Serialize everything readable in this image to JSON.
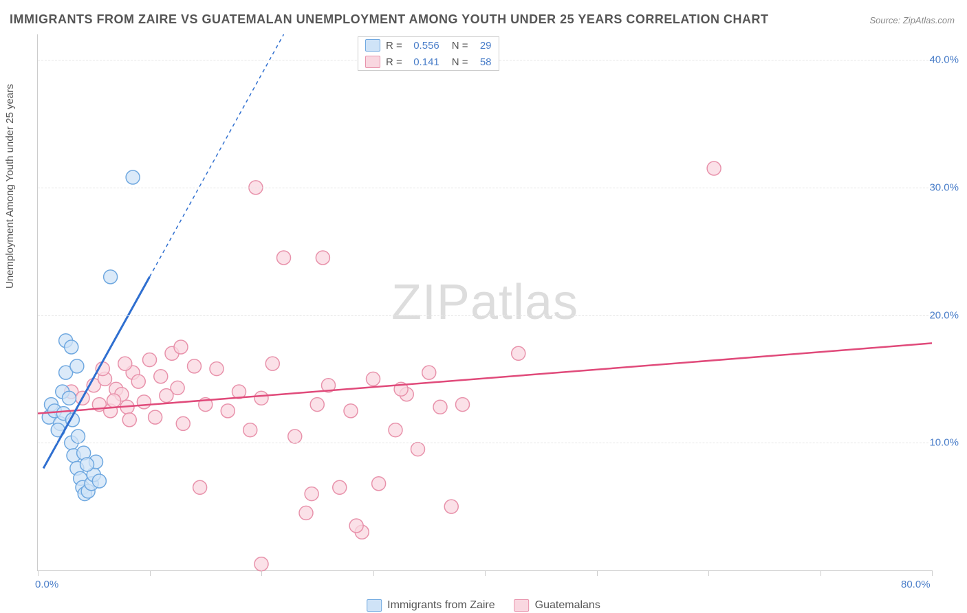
{
  "title": "IMMIGRANTS FROM ZAIRE VS GUATEMALAN UNEMPLOYMENT AMONG YOUTH UNDER 25 YEARS CORRELATION CHART",
  "source_prefix": "Source: ",
  "source_name": "ZipAtlas.com",
  "y_axis_label": "Unemployment Among Youth under 25 years",
  "watermark_zip": "ZIP",
  "watermark_atlas": "atlas",
  "chart": {
    "xlim": [
      0,
      80
    ],
    "ylim": [
      0,
      42
    ],
    "y_ticks": [
      10,
      20,
      30,
      40
    ],
    "y_tick_labels": [
      "10.0%",
      "20.0%",
      "30.0%",
      "40.0%"
    ],
    "x_ticks": [
      0,
      10,
      20,
      30,
      40,
      50,
      60,
      70,
      80
    ],
    "x_tick_labels": {
      "0": "0.0%",
      "80": "80.0%"
    },
    "grid_color": "#e5e5e5",
    "axis_color": "#cccccc",
    "background": "#ffffff"
  },
  "series": {
    "zaire": {
      "label": "Immigrants from Zaire",
      "color_fill": "#cfe3f7",
      "color_stroke": "#6fa8e0",
      "marker_radius": 10,
      "marker_opacity": 0.75,
      "trend_color": "#2f6fd0",
      "trend_width": 3,
      "trend": {
        "x1": 0.5,
        "y1": 8.0,
        "x2": 10.0,
        "y2": 23.0
      },
      "trend_ext": {
        "x1": 10.0,
        "y1": 23.0,
        "x2": 22.0,
        "y2": 42.0
      },
      "r_label": "R =",
      "r_value": "0.556",
      "n_label": "N =",
      "n_value": "29",
      "points": [
        [
          1.0,
          12.0
        ],
        [
          1.2,
          13.0
        ],
        [
          1.5,
          12.5
        ],
        [
          2.0,
          11.5
        ],
        [
          2.2,
          14.0
        ],
        [
          2.5,
          15.5
        ],
        [
          2.8,
          13.5
        ],
        [
          3.0,
          10.0
        ],
        [
          3.2,
          9.0
        ],
        [
          3.5,
          8.0
        ],
        [
          3.8,
          7.2
        ],
        [
          4.0,
          6.5
        ],
        [
          4.2,
          6.0
        ],
        [
          4.5,
          6.2
        ],
        [
          4.8,
          6.8
        ],
        [
          5.0,
          7.5
        ],
        [
          5.2,
          8.5
        ],
        [
          2.5,
          18.0
        ],
        [
          3.0,
          17.5
        ],
        [
          3.5,
          16.0
        ],
        [
          6.5,
          23.0
        ],
        [
          8.5,
          30.8
        ],
        [
          1.8,
          11.0
        ],
        [
          2.3,
          12.3
        ],
        [
          3.1,
          11.8
        ],
        [
          3.6,
          10.5
        ],
        [
          4.1,
          9.2
        ],
        [
          4.4,
          8.3
        ],
        [
          5.5,
          7.0
        ]
      ]
    },
    "guatemalans": {
      "label": "Guatemalans",
      "color_fill": "#f9d7e0",
      "color_stroke": "#e892ab",
      "marker_radius": 10,
      "marker_opacity": 0.75,
      "trend_color": "#e04a7a",
      "trend_width": 2.5,
      "trend": {
        "x1": 0.0,
        "y1": 12.3,
        "x2": 80.0,
        "y2": 17.8
      },
      "r_label": "R =",
      "r_value": "0.141",
      "n_label": "N =",
      "n_value": "58",
      "points": [
        [
          3.0,
          14.0
        ],
        [
          4.0,
          13.5
        ],
        [
          5.0,
          14.5
        ],
        [
          5.5,
          13.0
        ],
        [
          6.0,
          15.0
        ],
        [
          6.5,
          12.5
        ],
        [
          7.0,
          14.2
        ],
        [
          7.5,
          13.8
        ],
        [
          8.0,
          12.8
        ],
        [
          8.5,
          15.5
        ],
        [
          9.0,
          14.8
        ],
        [
          9.5,
          13.2
        ],
        [
          10.0,
          16.5
        ],
        [
          10.5,
          12.0
        ],
        [
          11.0,
          15.2
        ],
        [
          12.0,
          17.0
        ],
        [
          12.5,
          14.3
        ],
        [
          13.0,
          11.5
        ],
        [
          14.0,
          16.0
        ],
        [
          14.5,
          6.5
        ],
        [
          15.0,
          13.0
        ],
        [
          16.0,
          15.8
        ],
        [
          17.0,
          12.5
        ],
        [
          18.0,
          14.0
        ],
        [
          19.0,
          11.0
        ],
        [
          19.5,
          30.0
        ],
        [
          20.0,
          13.5
        ],
        [
          21.0,
          16.2
        ],
        [
          22.0,
          24.5
        ],
        [
          23.0,
          10.5
        ],
        [
          24.0,
          4.5
        ],
        [
          24.5,
          6.0
        ],
        [
          25.0,
          13.0
        ],
        [
          25.5,
          24.5
        ],
        [
          26.0,
          14.5
        ],
        [
          27.0,
          6.5
        ],
        [
          28.0,
          12.5
        ],
        [
          29.0,
          3.0
        ],
        [
          30.0,
          15.0
        ],
        [
          30.5,
          6.8
        ],
        [
          32.0,
          11.0
        ],
        [
          33.0,
          13.8
        ],
        [
          34.0,
          9.5
        ],
        [
          35.0,
          15.5
        ],
        [
          36.0,
          12.8
        ],
        [
          37.0,
          5.0
        ],
        [
          38.0,
          13.0
        ],
        [
          43.0,
          17.0
        ],
        [
          20.0,
          0.5
        ],
        [
          28.5,
          3.5
        ],
        [
          32.5,
          14.2
        ],
        [
          12.8,
          17.5
        ],
        [
          8.2,
          11.8
        ],
        [
          6.8,
          13.3
        ],
        [
          60.5,
          31.5
        ],
        [
          5.8,
          15.8
        ],
        [
          7.8,
          16.2
        ],
        [
          11.5,
          13.7
        ]
      ]
    }
  }
}
